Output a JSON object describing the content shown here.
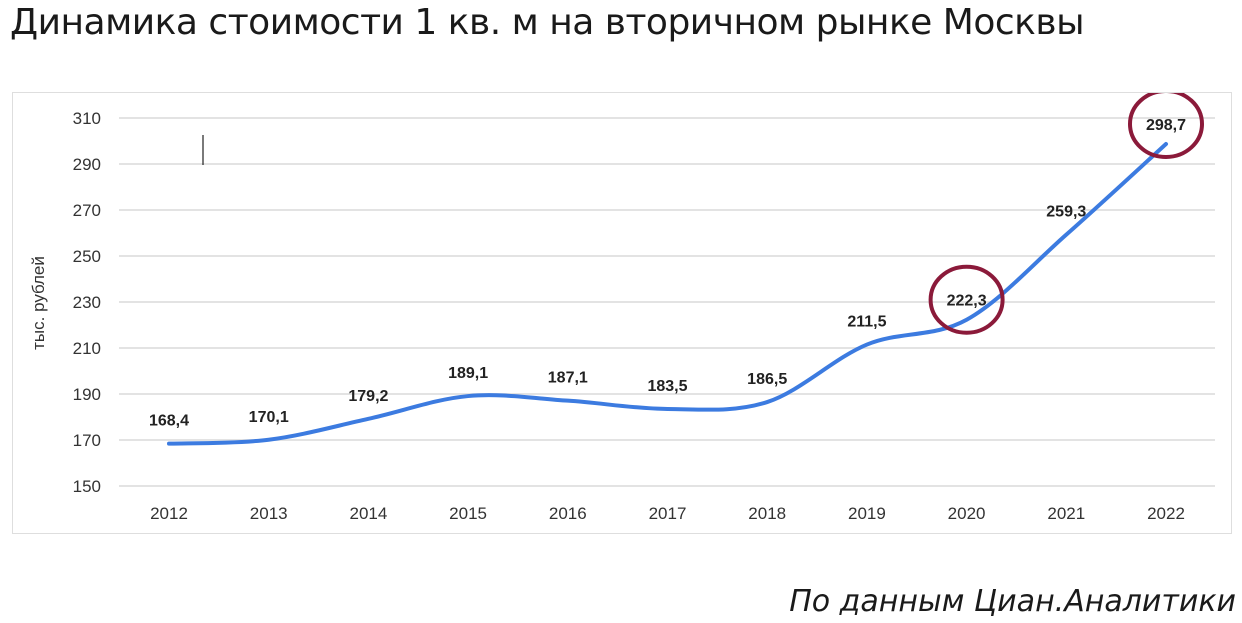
{
  "title": "Динамика стоимости 1 кв. м на вторичном рынке Москвы",
  "source": "По данным Циан.Аналитики",
  "chart_data": {
    "type": "line",
    "title": "",
    "xlabel": "",
    "ylabel": "тыс. рублей",
    "categories": [
      "2012",
      "2013",
      "2014",
      "2015",
      "2016",
      "2017",
      "2018",
      "2019",
      "2020",
      "2021",
      "2022"
    ],
    "series": [
      {
        "values": [
          168.4,
          170.1,
          179.2,
          189.1,
          187.1,
          183.5,
          186.5,
          211.5,
          222.3,
          259.3,
          298.7
        ],
        "labels": [
          "168,4",
          "170,1",
          "179,2",
          "189,1",
          "187,1",
          "183,5",
          "186,5",
          "211,5",
          "222,3",
          "259,3",
          "298,7"
        ]
      }
    ],
    "ylim": [
      150,
      310
    ],
    "yticks": [
      150,
      170,
      190,
      210,
      230,
      250,
      270,
      290,
      310
    ],
    "grid": true,
    "highlighted": [
      "2020",
      "2022"
    ],
    "line_color": "#3c7be0",
    "highlight_color": "#8b1a3a"
  }
}
